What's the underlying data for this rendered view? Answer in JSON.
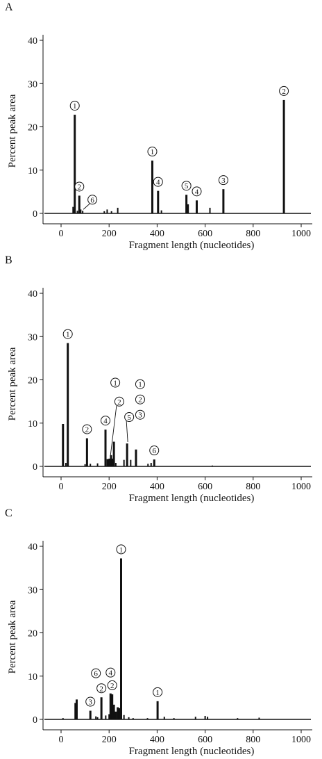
{
  "chart_data": [
    {
      "panel": "A",
      "type": "bar",
      "xlabel": "Fragment length (nucleotides)",
      "ylabel": "Percent peak area",
      "xlim": [
        0,
        1040
      ],
      "ylim": [
        0,
        41
      ],
      "xticks": [
        0,
        200,
        400,
        600,
        800,
        1000
      ],
      "yticks": [
        0,
        10,
        20,
        30,
        40
      ],
      "grid": false,
      "peaks": [
        {
          "x": 50,
          "y": 1.5
        },
        {
          "x": 55,
          "y": 1.0
        },
        {
          "x": 57,
          "y": 22.8
        },
        {
          "x": 68,
          "y": 0.6
        },
        {
          "x": 76,
          "y": 4.1
        },
        {
          "x": 82,
          "y": 0.9
        },
        {
          "x": 90,
          "y": 0.6
        },
        {
          "x": 180,
          "y": 0.5
        },
        {
          "x": 192,
          "y": 0.9
        },
        {
          "x": 210,
          "y": 0.5
        },
        {
          "x": 236,
          "y": 1.3
        },
        {
          "x": 380,
          "y": 12.2
        },
        {
          "x": 404,
          "y": 5.2
        },
        {
          "x": 418,
          "y": 0.7
        },
        {
          "x": 522,
          "y": 4.3
        },
        {
          "x": 528,
          "y": 2.1
        },
        {
          "x": 565,
          "y": 3.0
        },
        {
          "x": 620,
          "y": 1.3
        },
        {
          "x": 676,
          "y": 5.6
        },
        {
          "x": 928,
          "y": 26.2
        }
      ],
      "annotations": [
        {
          "label": "1",
          "x": 57,
          "y": 22.8
        },
        {
          "label": "2",
          "x": 76,
          "y": 4.1
        },
        {
          "label": "6",
          "x": 90,
          "y": 0.6,
          "dx": 14,
          "dy": -16,
          "leader": true
        },
        {
          "label": "1",
          "x": 380,
          "y": 12.2
        },
        {
          "label": "4",
          "x": 404,
          "y": 5.2
        },
        {
          "label": "5",
          "x": 522,
          "y": 4.3
        },
        {
          "label": "4",
          "x": 565,
          "y": 3.0
        },
        {
          "label": "3",
          "x": 676,
          "y": 5.6
        },
        {
          "label": "2",
          "x": 928,
          "y": 26.2
        }
      ]
    },
    {
      "panel": "B",
      "type": "bar",
      "xlabel": "Fragment length (nucleotides)",
      "ylabel": "Percent peak area",
      "xlim": [
        0,
        1040
      ],
      "ylim": [
        0,
        41
      ],
      "xticks": [
        0,
        200,
        400,
        600,
        800,
        1000
      ],
      "yticks": [
        0,
        10,
        20,
        30,
        40
      ],
      "grid": false,
      "peaks": [
        {
          "x": 8,
          "y": 9.8
        },
        {
          "x": 20,
          "y": 0.8
        },
        {
          "x": 28,
          "y": 28.5
        },
        {
          "x": 100,
          "y": 0.5
        },
        {
          "x": 108,
          "y": 6.5
        },
        {
          "x": 122,
          "y": 0.6
        },
        {
          "x": 152,
          "y": 0.7
        },
        {
          "x": 185,
          "y": 8.5
        },
        {
          "x": 194,
          "y": 1.7
        },
        {
          "x": 202,
          "y": 1.8
        },
        {
          "x": 208,
          "y": 2.6
        },
        {
          "x": 214,
          "y": 1.8
        },
        {
          "x": 220,
          "y": 5.7
        },
        {
          "x": 228,
          "y": 0.8
        },
        {
          "x": 262,
          "y": 1.5
        },
        {
          "x": 275,
          "y": 5.3
        },
        {
          "x": 290,
          "y": 1.5
        },
        {
          "x": 312,
          "y": 3.9
        },
        {
          "x": 362,
          "y": 0.6
        },
        {
          "x": 375,
          "y": 0.8
        },
        {
          "x": 388,
          "y": 1.6
        },
        {
          "x": 630,
          "y": 0.2
        }
      ],
      "annotations": [
        {
          "label": "1",
          "x": 28,
          "y": 28.5
        },
        {
          "label": "2",
          "x": 108,
          "y": 6.5
        },
        {
          "label": "4",
          "x": 185,
          "y": 8.5
        },
        {
          "label": "2",
          "x": 202,
          "y": 1.8,
          "dx": 14,
          "dy": -82,
          "leader": true
        },
        {
          "label": "1",
          "x": 220,
          "y": 5.7,
          "dx": 2,
          "dy": -85
        },
        {
          "label": "5",
          "x": 275,
          "y": 5.3,
          "dx": 3,
          "dy": -38,
          "leader": true
        },
        {
          "label": "3",
          "x": 312,
          "y": 3.9,
          "dx": 6,
          "dy": -50
        },
        {
          "label": "2",
          "x": 312,
          "y": 3.9,
          "dx": 6,
          "dy": -72
        },
        {
          "label": "1",
          "x": 312,
          "y": 3.9,
          "dx": 6,
          "dy": -94
        },
        {
          "label": "6",
          "x": 388,
          "y": 1.6
        }
      ]
    },
    {
      "panel": "C",
      "type": "bar",
      "xlabel": "Fragment length (nucleotides)",
      "ylabel": "Percent peak area",
      "xlim": [
        0,
        1040
      ],
      "ylim": [
        0,
        41
      ],
      "xticks": [
        0,
        200,
        400,
        600,
        800,
        1000
      ],
      "yticks": [
        0,
        10,
        20,
        30,
        40
      ],
      "grid": false,
      "peaks": [
        {
          "x": 8,
          "y": 0.3
        },
        {
          "x": 60,
          "y": 3.8
        },
        {
          "x": 65,
          "y": 4.6
        },
        {
          "x": 122,
          "y": 2.0
        },
        {
          "x": 145,
          "y": 0.7
        },
        {
          "x": 152,
          "y": 0.5
        },
        {
          "x": 168,
          "y": 5.1
        },
        {
          "x": 186,
          "y": 0.9
        },
        {
          "x": 200,
          "y": 1.2
        },
        {
          "x": 206,
          "y": 6.0
        },
        {
          "x": 213,
          "y": 5.8
        },
        {
          "x": 220,
          "y": 3.4
        },
        {
          "x": 228,
          "y": 1.8
        },
        {
          "x": 236,
          "y": 2.8
        },
        {
          "x": 242,
          "y": 2.6
        },
        {
          "x": 250,
          "y": 37.2
        },
        {
          "x": 262,
          "y": 1.0
        },
        {
          "x": 282,
          "y": 0.5
        },
        {
          "x": 300,
          "y": 0.3
        },
        {
          "x": 360,
          "y": 0.3
        },
        {
          "x": 402,
          "y": 4.2
        },
        {
          "x": 430,
          "y": 0.6
        },
        {
          "x": 470,
          "y": 0.3
        },
        {
          "x": 560,
          "y": 0.6
        },
        {
          "x": 600,
          "y": 0.8
        },
        {
          "x": 610,
          "y": 0.6
        },
        {
          "x": 735,
          "y": 0.3
        },
        {
          "x": 825,
          "y": 0.4
        }
      ],
      "annotations": [
        {
          "label": "1",
          "x": 250,
          "y": 37.2
        },
        {
          "label": "3",
          "x": 122,
          "y": 2.0
        },
        {
          "label": "6",
          "x": 145,
          "y": 0.7,
          "dx": 0,
          "dy": -62
        },
        {
          "label": "2",
          "x": 168,
          "y": 5.1
        },
        {
          "label": "4",
          "x": 206,
          "y": 6.0,
          "dx": 0,
          "dy": -30
        },
        {
          "label": "2",
          "x": 213,
          "y": 5.8
        },
        {
          "label": "1",
          "x": 402,
          "y": 4.2
        }
      ]
    }
  ]
}
